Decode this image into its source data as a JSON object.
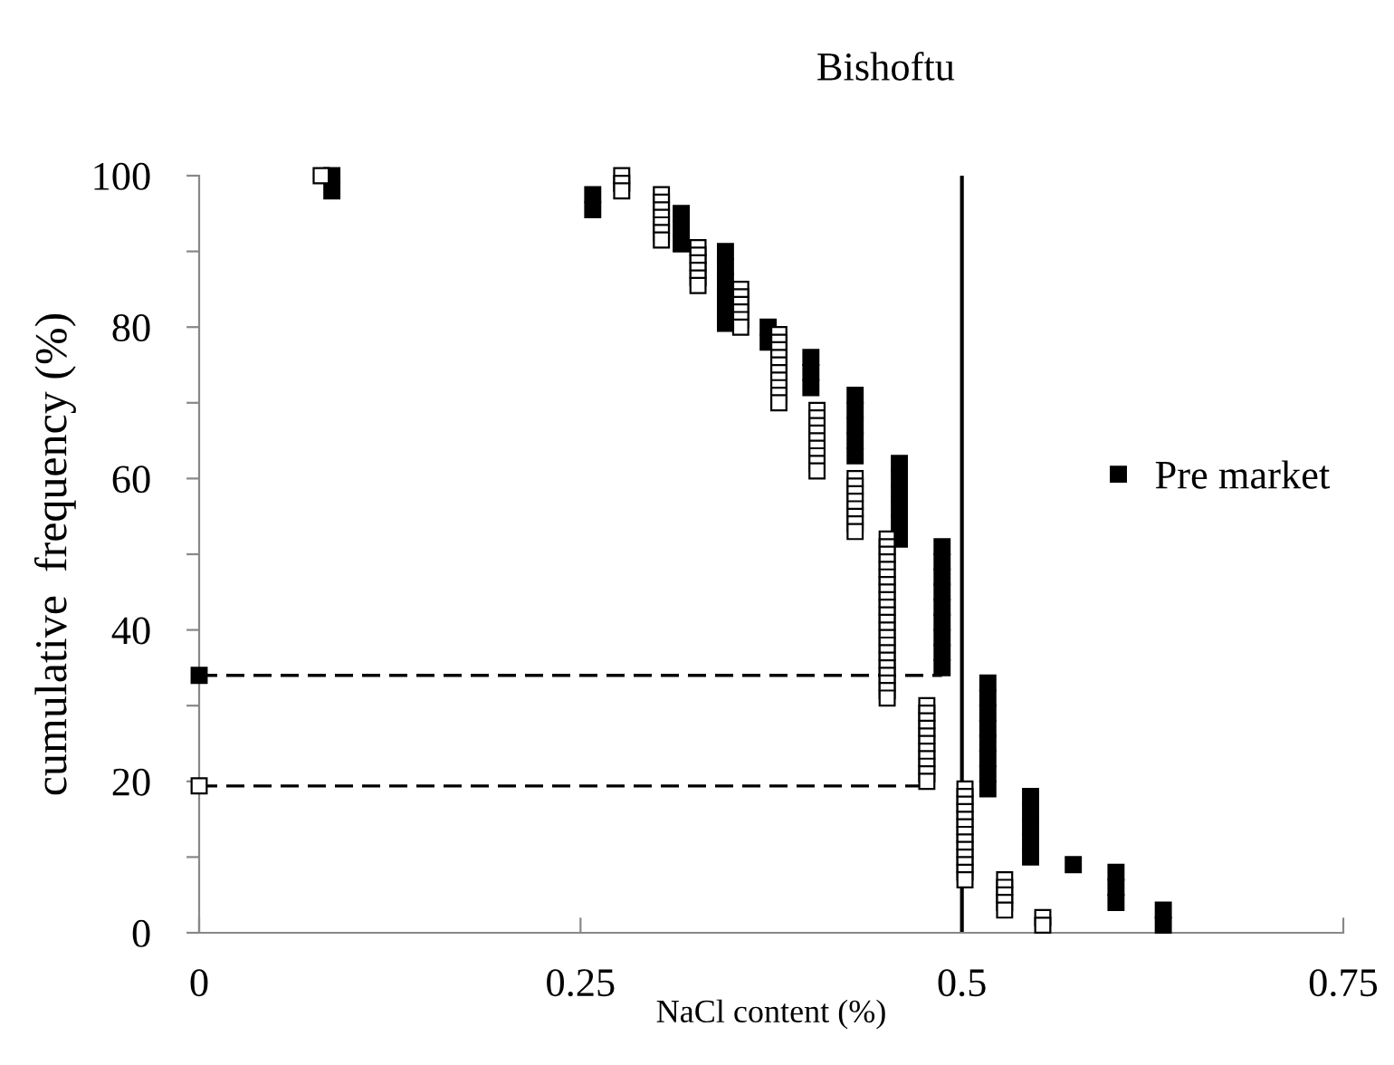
{
  "chart_data": {
    "type": "scatter",
    "title": "Bishoftu",
    "xlabel": "NaCl content (%)",
    "ylabel": "cumulative  frequency (%)",
    "xlim": [
      0,
      0.75
    ],
    "xticks": [
      0,
      0.25,
      0.5,
      0.75
    ],
    "ylim": [
      0,
      100
    ],
    "yticks": [
      0,
      {
        "value": 10,
        "label": null
      },
      20,
      {
        "value": 30,
        "label": null
      },
      40,
      {
        "value": 50,
        "label": null
      },
      60,
      {
        "value": 70,
        "label": null
      },
      80,
      {
        "value": 90,
        "label": null
      },
      100
    ],
    "grid": false,
    "legend": "right",
    "marker": "square",
    "series": [
      {
        "name": "Pre market",
        "color": "#000000",
        "x": [
          0.087,
          0.087,
          0.258,
          0.258,
          0.316,
          0.316,
          0.316,
          0.345,
          0.345,
          0.345,
          0.345,
          0.345,
          0.345,
          0.373,
          0.373,
          0.401,
          0.401,
          0.401,
          0.43,
          0.43,
          0.43,
          0.43,
          0.43,
          0.459,
          0.459,
          0.459,
          0.459,
          0.459,
          0.459,
          0.487,
          0.487,
          0.487,
          0.487,
          0.487,
          0.487,
          0.487,
          0.487,
          0.487,
          0.517,
          0.517,
          0.517,
          0.517,
          0.517,
          0.517,
          0.517,
          0.517,
          0.545,
          0.545,
          0.545,
          0.545,
          0.545,
          0.573,
          0.601,
          0.601,
          0.601,
          0.632,
          0.632,
          0
        ],
        "values": [
          100,
          98,
          97.5,
          95.5,
          95,
          93,
          91,
          90,
          88,
          86,
          84,
          82,
          80.5,
          80,
          78,
          76,
          74,
          72,
          71,
          69,
          67,
          65,
          63,
          62,
          60,
          58,
          56,
          54,
          52,
          51,
          49,
          47,
          45,
          43,
          41,
          39,
          37,
          35,
          33,
          31,
          29,
          27,
          25,
          23,
          21,
          19,
          18,
          16,
          14,
          12,
          10,
          9,
          8,
          6,
          4,
          3,
          1,
          34
        ]
      },
      {
        "color": "#ffffff",
        "x": [
          0.08,
          0.277,
          0.277,
          0.277,
          0.303,
          0.303,
          0.303,
          0.303,
          0.303,
          0.303,
          0.303,
          0.327,
          0.327,
          0.327,
          0.327,
          0.327,
          0.327,
          0.355,
          0.355,
          0.355,
          0.355,
          0.355,
          0.355,
          0.38,
          0.38,
          0.38,
          0.38,
          0.38,
          0.38,
          0.38,
          0.38,
          0.38,
          0.38,
          0.405,
          0.405,
          0.405,
          0.405,
          0.405,
          0.405,
          0.405,
          0.405,
          0.405,
          0.43,
          0.43,
          0.43,
          0.43,
          0.43,
          0.43,
          0.43,
          0.43,
          0.451,
          0.451,
          0.451,
          0.451,
          0.451,
          0.451,
          0.451,
          0.451,
          0.451,
          0.451,
          0.451,
          0.451,
          0.451,
          0.451,
          0.451,
          0.451,
          0.451,
          0.451,
          0.451,
          0.451,
          0.451,
          0.451,
          0.477,
          0.477,
          0.477,
          0.477,
          0.477,
          0.477,
          0.477,
          0.477,
          0.477,
          0.477,
          0.477,
          0.502,
          0.502,
          0.502,
          0.502,
          0.502,
          0.502,
          0.502,
          0.502,
          0.502,
          0.502,
          0.502,
          0.502,
          0.502,
          0.528,
          0.528,
          0.528,
          0.528,
          0.528,
          0.553,
          0.553,
          0
        ],
        "values": [
          100,
          100,
          99,
          98,
          97.5,
          96.5,
          95.5,
          94.5,
          93.5,
          92.5,
          91.5,
          90.5,
          89.5,
          88.5,
          87.5,
          86.5,
          85.5,
          85,
          84,
          83,
          82,
          81,
          80,
          79,
          78,
          77,
          76,
          75,
          74,
          73,
          72,
          71,
          70,
          69,
          68,
          67,
          66,
          65,
          64,
          63,
          62,
          61,
          60,
          59,
          58,
          57,
          56,
          55,
          54,
          53,
          52,
          51,
          50,
          49,
          48,
          47,
          46,
          45,
          44,
          43,
          42,
          41,
          40,
          39,
          38,
          37,
          36,
          35,
          34,
          33,
          32,
          31,
          30,
          29,
          28,
          27,
          26,
          25,
          24,
          23,
          22,
          21,
          20,
          19,
          18,
          17,
          16,
          15,
          14,
          13,
          12,
          11,
          10,
          9,
          8,
          7,
          7,
          6,
          5,
          4,
          3,
          2,
          1,
          19.4
        ]
      },
      {
        "type": "line",
        "color": "#000000",
        "line_style": "dashed",
        "marker": "none",
        "x": [
          0,
          0.487
        ],
        "values": [
          34,
          34
        ]
      },
      {
        "type": "line",
        "color": "#000000",
        "line_style": "dashed",
        "marker": "none",
        "x": [
          0,
          0.477
        ],
        "values": [
          19.4,
          19.4
        ]
      }
    ],
    "ref_lines": [
      {
        "axis": "x",
        "value": 0.5,
        "color": "#000000",
        "line_style": "solid"
      }
    ]
  }
}
